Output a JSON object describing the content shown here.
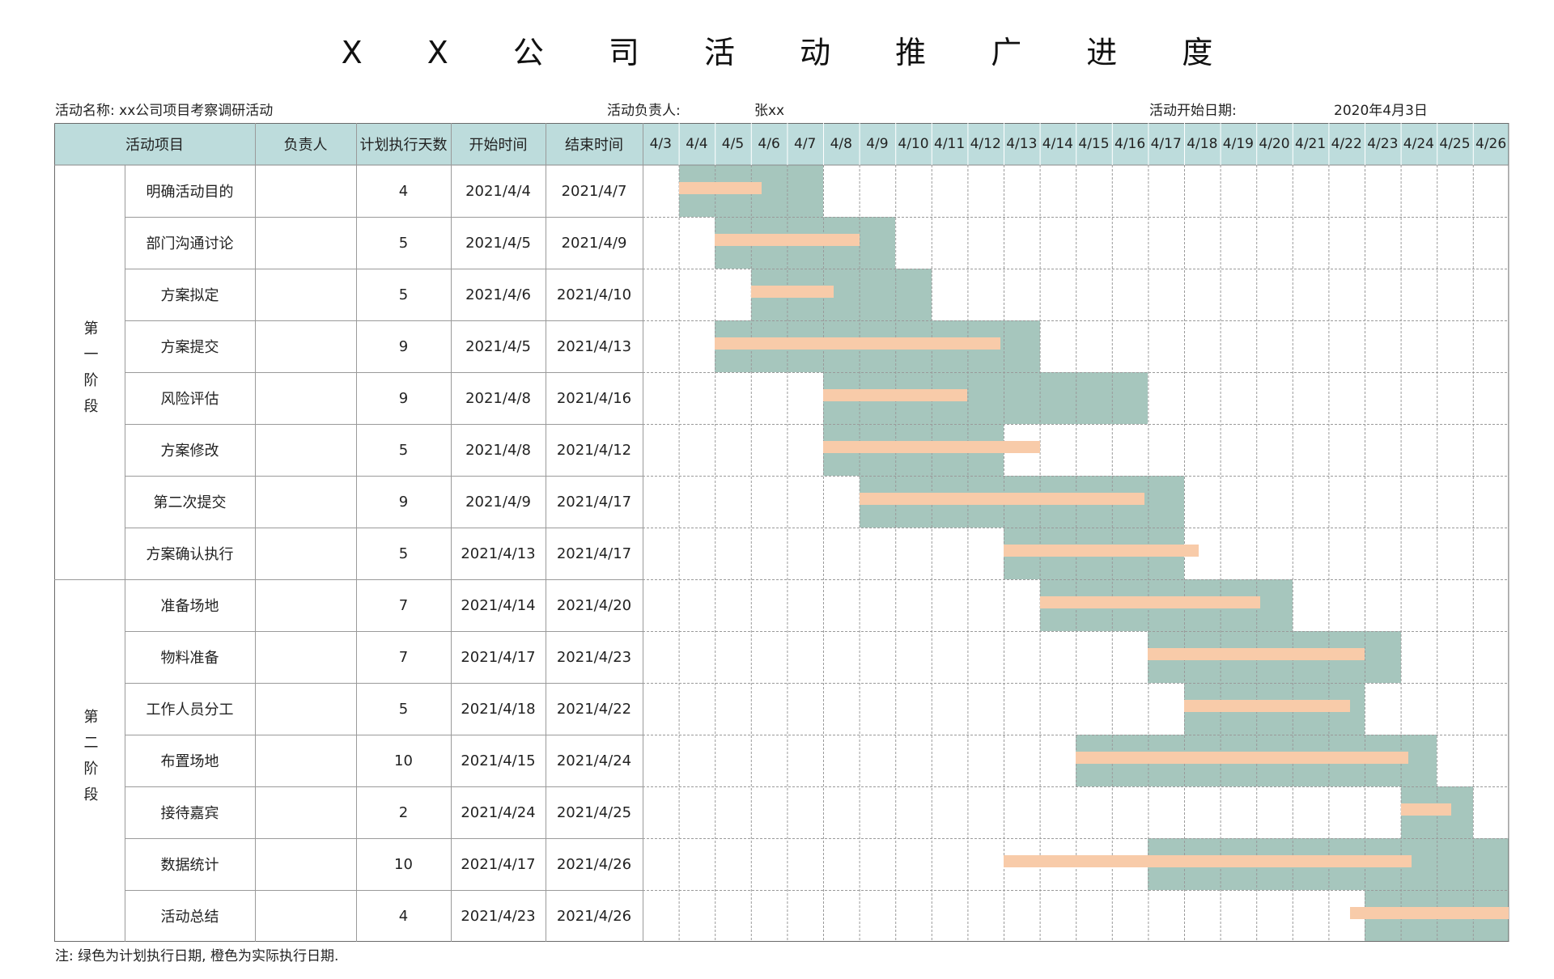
{
  "title": "X X 公 司 活 动 推 广 进 度",
  "meta": {
    "activity_name": "活动名称: xx公司项目考察调研活动",
    "owner_label": "活动负责人:",
    "owner_value": "张xx",
    "start_label": "活动开始日期:",
    "start_value": "2020年4月3日"
  },
  "headers": {
    "item": "活动项目",
    "owner": "负责人",
    "days": "计划执行天数",
    "start": "开始时间",
    "end": "结束时间"
  },
  "dates": [
    "4/3",
    "4/4",
    "4/5",
    "4/6",
    "4/7",
    "4/8",
    "4/9",
    "4/10",
    "4/11",
    "4/12",
    "4/13",
    "4/14",
    "4/15",
    "4/16",
    "4/17",
    "4/18",
    "4/19",
    "4/20",
    "4/21",
    "4/22",
    "4/23",
    "4/24",
    "4/25",
    "4/26"
  ],
  "phases": [
    {
      "label": "第一阶段",
      "rows": 8
    },
    {
      "label": "第二阶段",
      "rows": 7
    }
  ],
  "tasks": [
    {
      "name": "明确活动目的",
      "owner": "",
      "days": "4",
      "start": "2021/4/4",
      "end": "2021/4/7",
      "actual": [
        4,
        6.3
      ]
    },
    {
      "name": "部门沟通讨论",
      "owner": "",
      "days": "5",
      "start": "2021/4/5",
      "end": "2021/4/9",
      "actual": [
        5,
        9
      ]
    },
    {
      "name": "方案拟定",
      "owner": "",
      "days": "5",
      "start": "2021/4/6",
      "end": "2021/4/10",
      "actual": [
        6,
        8.3
      ]
    },
    {
      "name": "方案提交",
      "owner": "",
      "days": "9",
      "start": "2021/4/5",
      "end": "2021/4/13",
      "actual": [
        5,
        12.9
      ]
    },
    {
      "name": "风险评估",
      "owner": "",
      "days": "9",
      "start": "2021/4/8",
      "end": "2021/4/16",
      "actual": [
        8,
        12
      ]
    },
    {
      "name": "方案修改",
      "owner": "",
      "days": "5",
      "start": "2021/4/8",
      "end": "2021/4/12",
      "actual": [
        8,
        14
      ]
    },
    {
      "name": "第二次提交",
      "owner": "",
      "days": "9",
      "start": "2021/4/9",
      "end": "2021/4/17",
      "actual": [
        9,
        16.9
      ]
    },
    {
      "name": "方案确认执行",
      "owner": "",
      "days": "5",
      "start": "2021/4/13",
      "end": "2021/4/17",
      "actual": [
        13,
        18.4
      ]
    },
    {
      "name": "准备场地",
      "owner": "",
      "days": "7",
      "start": "2021/4/14",
      "end": "2021/4/20",
      "actual": [
        14,
        20.1
      ]
    },
    {
      "name": "物料准备",
      "owner": "",
      "days": "7",
      "start": "2021/4/17",
      "end": "2021/4/23",
      "actual": [
        17,
        23
      ]
    },
    {
      "name": "工作人员分工",
      "owner": "",
      "days": "5",
      "start": "2021/4/18",
      "end": "2021/4/22",
      "actual": [
        18,
        22.6
      ]
    },
    {
      "name": "布置场地",
      "owner": "",
      "days": "10",
      "start": "2021/4/15",
      "end": "2021/4/24",
      "actual": [
        15,
        24.2
      ]
    },
    {
      "name": "接待嘉宾",
      "owner": "",
      "days": "2",
      "start": "2021/4/24",
      "end": "2021/4/25",
      "actual": [
        24,
        25.4
      ]
    },
    {
      "name": "数据统计",
      "owner": "",
      "days": "10",
      "start": "2021/4/17",
      "end": "2021/4/26",
      "actual": [
        13,
        24.3
      ]
    },
    {
      "name": "活动总结",
      "owner": "",
      "days": "4",
      "start": "2021/4/23",
      "end": "2021/4/26",
      "actual": [
        22.6,
        27
      ]
    }
  ],
  "legend_note": "注: 绿色为计划执行日期, 橙色为实际执行日期.",
  "colors": {
    "header": "#bddcdc",
    "plan": "#a6c6bd",
    "actual": "#f8cba9"
  }
}
